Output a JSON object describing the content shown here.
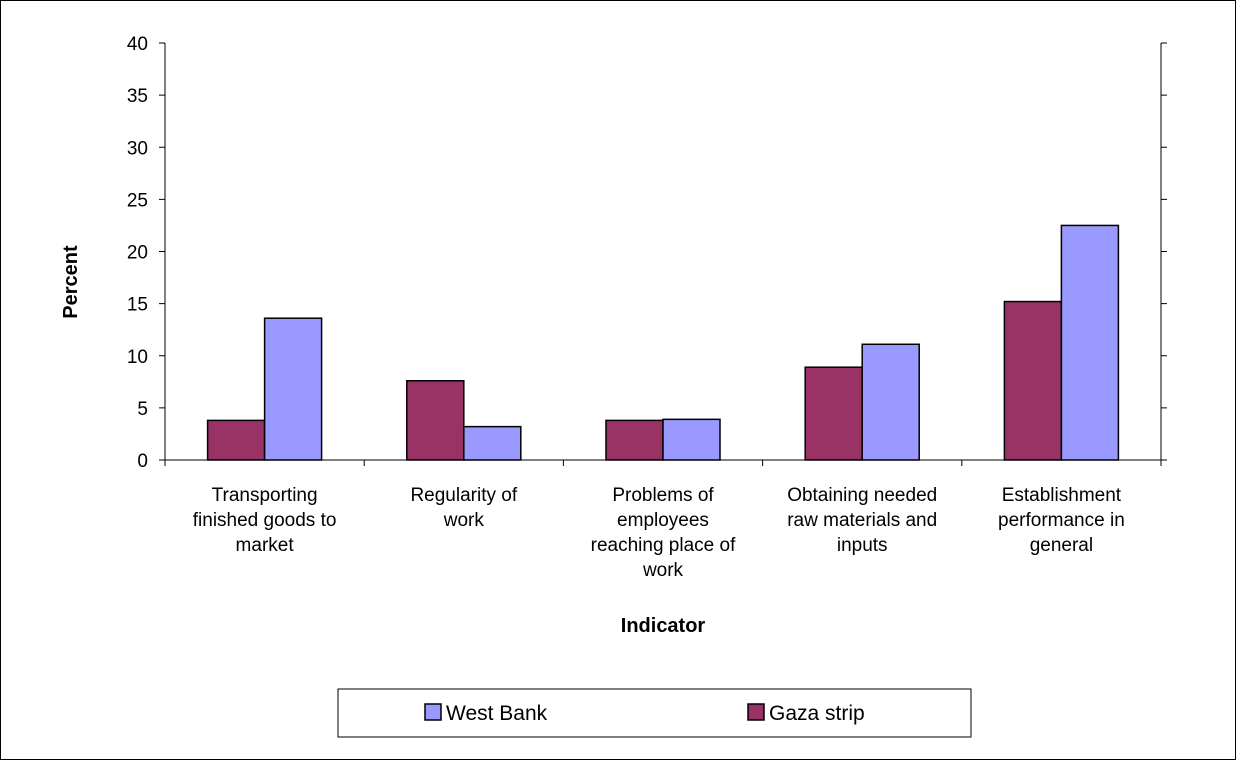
{
  "chart_data": {
    "type": "bar",
    "categories": [
      [
        "Transporting",
        "finished goods to",
        "market"
      ],
      [
        "Regularity of",
        "work"
      ],
      [
        "Problems of",
        "employees",
        "reaching place of",
        "work"
      ],
      [
        "Obtaining needed",
        "raw materials and",
        "inputs"
      ],
      [
        "Establishment",
        "performance in",
        "general"
      ]
    ],
    "series": [
      {
        "name": "Gaza strip",
        "color": "#993366",
        "values": [
          3.8,
          7.6,
          3.8,
          8.9,
          15.2
        ]
      },
      {
        "name": "West Bank",
        "color": "#9999ff",
        "values": [
          13.6,
          3.2,
          3.9,
          11.1,
          22.5
        ]
      }
    ],
    "xlabel": "Indicator",
    "ylabel": "Percent",
    "ylim": [
      0,
      40
    ],
    "yticks": [
      0,
      5,
      10,
      15,
      20,
      25,
      30,
      35,
      40
    ],
    "legend": {
      "placement": "bottom",
      "order": [
        "West Bank",
        "Gaza strip"
      ]
    }
  }
}
